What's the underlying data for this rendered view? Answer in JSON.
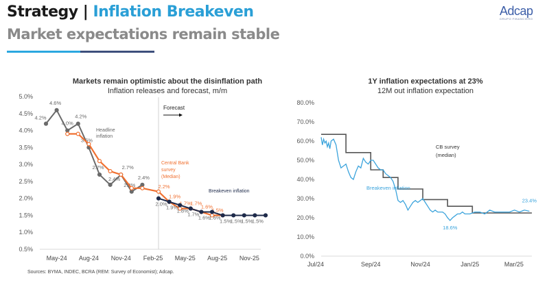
{
  "header": {
    "title_prefix": "Strategy | ",
    "title_accent": "Inflation Breakeven",
    "subtitle": "Market expectations remain stable",
    "logo_name": "Adcap",
    "logo_tagline": "GRUPO FINANCIERO",
    "accent_color": "#2a9fd6"
  },
  "chart_data": [
    {
      "type": "line",
      "title": "Markets remain optimistic about the disinflation path",
      "subtitle": "Inflation releases and forecast, m/m",
      "xlabel": "",
      "ylabel": "",
      "ylim": [
        0.5,
        5.0
      ],
      "yticks": [
        "5.0%",
        "4.5%",
        "4.0%",
        "3.5%",
        "3.0%",
        "2.5%",
        "2.0%",
        "1.5%",
        "1.0%",
        "0.5%"
      ],
      "ytick_values": [
        5.0,
        4.5,
        4.0,
        3.5,
        3.0,
        2.5,
        2.0,
        1.5,
        1.0,
        0.5
      ],
      "x": [
        "Apr-24",
        "May-24",
        "Jun-24",
        "Jul-24",
        "Aug-24",
        "Sep-24",
        "Oct-24",
        "Nov-24",
        "Dec-24",
        "Jan-25",
        "Feb-25",
        "Mar-25",
        "Apr-25",
        "May-25",
        "Jun-25",
        "Jul-25",
        "Aug-25",
        "Sep-25",
        "Oct-25",
        "Nov-25",
        "Dec-25"
      ],
      "xtick_labels": [
        "May-24",
        "Aug-24",
        "Nov-24",
        "Feb-25",
        "May-25",
        "Aug-25",
        "Nov-25"
      ],
      "forecast_label": "Forecast",
      "forecast_start": "Feb-25",
      "sources": "Sources: BYMA, INDEC, BCRA (REM: Survey of Economist); Adcap.",
      "series": [
        {
          "name": "Headline inflation",
          "color": "#6b6b6b",
          "x": [
            "Apr-24",
            "May-24",
            "Jun-24",
            "Jul-24",
            "Aug-24",
            "Sep-24",
            "Oct-24",
            "Nov-24",
            "Dec-24",
            "Jan-25"
          ],
          "values": [
            4.2,
            4.6,
            4.0,
            4.2,
            3.5,
            2.7,
            2.4,
            2.7,
            2.2,
            2.4
          ],
          "labels": [
            "4.2%",
            "4.6%",
            "4.0%",
            "4.2%",
            "3.5%",
            "2.7%",
            "2.4%",
            "2.7%",
            "2.2%",
            "2.4%"
          ]
        },
        {
          "name": "Central Bank survey (Median)",
          "color": "#f07030",
          "x": [
            "Jun-24",
            "Jul-24",
            "Aug-24",
            "Sep-24",
            "Oct-24",
            "Nov-24",
            "Dec-24",
            "Jan-25",
            "Feb-25",
            "Mar-25",
            "Apr-25",
            "May-25",
            "Jun-25",
            "Jul-25",
            "Aug-25"
          ],
          "values": [
            3.9,
            3.9,
            3.6,
            3.1,
            2.8,
            2.7,
            2.3,
            2.3,
            2.2,
            1.9,
            1.7,
            1.7,
            1.6,
            1.5,
            1.5
          ],
          "labels": [
            "",
            "",
            "",
            "",
            "",
            "",
            "",
            "",
            "2.2%",
            "1.9%",
            "1.7%",
            "1.7%",
            "1.6%",
            "1.5%",
            ""
          ]
        },
        {
          "name": "Breakeven inflation",
          "color": "#1e2a4a",
          "x": [
            "Feb-25",
            "Mar-25",
            "Apr-25",
            "May-25",
            "Jun-25",
            "Jul-25",
            "Aug-25",
            "Sep-25",
            "Oct-25",
            "Nov-25",
            "Dec-25"
          ],
          "values": [
            2.0,
            1.9,
            1.8,
            1.7,
            1.6,
            1.6,
            1.5,
            1.5,
            1.5,
            1.5,
            1.5
          ],
          "labels": [
            "2.0%",
            "1.9%",
            "1.8%",
            "1.7%",
            "1.6%",
            "1.6%",
            "1.5%",
            "1.5%",
            "1.5%",
            "1.5%",
            ""
          ]
        }
      ],
      "annotations": [
        "Headline inflation",
        "Central Bank survey (Median)",
        "Breakeven inflation"
      ],
      "grid": false
    },
    {
      "type": "line",
      "title": "1Y inflation expectations at 23%",
      "subtitle": "12M out inflation expectation",
      "xlabel": "",
      "ylabel": "",
      "ylim": [
        0,
        80
      ],
      "yticks": [
        "80.0%",
        "70.0%",
        "60.0%",
        "50.0%",
        "40.0%",
        "30.0%",
        "20.0%",
        "10.0%",
        "0.0%"
      ],
      "ytick_values": [
        80,
        70,
        60,
        50,
        40,
        30,
        20,
        10,
        0
      ],
      "xtick_labels": [
        "Jul/24",
        "Sep/24",
        "Nov/24",
        "Jan/25",
        "Mar/25"
      ],
      "xlim_months": [
        0,
        8.5
      ],
      "series": [
        {
          "name": "CB survey (median)",
          "color": "#555555",
          "step": true,
          "x_months": [
            0,
            1.0,
            2.0,
            2.5,
            3.1,
            4.1,
            5.1,
            6.1,
            7.1,
            8.5
          ],
          "values": [
            63.5,
            54,
            45,
            41,
            35,
            29.5,
            26,
            22.5,
            22.5,
            22.5
          ]
        },
        {
          "name": "Breakeven inflation",
          "color": "#3aa3dc",
          "x_months": [
            0,
            0.05,
            0.1,
            0.15,
            0.2,
            0.25,
            0.3,
            0.35,
            0.4,
            0.5,
            0.6,
            0.7,
            0.8,
            0.9,
            1.0,
            1.1,
            1.2,
            1.3,
            1.4,
            1.5,
            1.6,
            1.7,
            1.8,
            1.9,
            2.0,
            2.1,
            2.2,
            2.3,
            2.4,
            2.5,
            2.6,
            2.7,
            2.8,
            2.9,
            3.0,
            3.1,
            3.2,
            3.3,
            3.4,
            3.5,
            3.6,
            3.7,
            3.8,
            3.9,
            4.0,
            4.1,
            4.2,
            4.3,
            4.4,
            4.5,
            4.6,
            4.7,
            4.8,
            4.9,
            5.0,
            5.1,
            5.2,
            5.3,
            5.4,
            5.5,
            5.6,
            5.7,
            5.8,
            5.9,
            6.0,
            6.2,
            6.4,
            6.6,
            6.8,
            7.0,
            7.2,
            7.4,
            7.6,
            7.8,
            8.0,
            8.2,
            8.4
          ],
          "values": [
            62,
            58,
            61,
            59,
            60,
            57,
            59,
            56,
            60,
            61,
            58,
            50,
            46,
            47,
            48,
            44,
            41,
            40,
            44,
            47,
            46,
            51,
            49,
            48,
            50,
            50,
            48,
            46,
            45,
            45,
            43,
            42,
            41,
            39,
            35,
            29,
            28,
            29,
            27,
            24,
            26,
            28,
            29,
            28,
            29,
            30,
            28,
            26,
            24,
            23,
            24,
            23,
            23,
            23,
            22,
            20,
            18.6,
            20,
            21,
            22,
            22,
            23,
            22,
            22,
            22,
            23,
            23,
            22,
            24,
            23,
            23,
            23,
            23,
            24,
            23,
            24,
            23.4
          ],
          "labels": [
            {
              "x_months": 5.2,
              "text": "18.6%"
            },
            {
              "x_months": 8.4,
              "text": "23.4%"
            }
          ]
        }
      ],
      "annotations": [
        "CB survey (median)",
        "Breakeven inflation"
      ],
      "grid": false
    }
  ]
}
